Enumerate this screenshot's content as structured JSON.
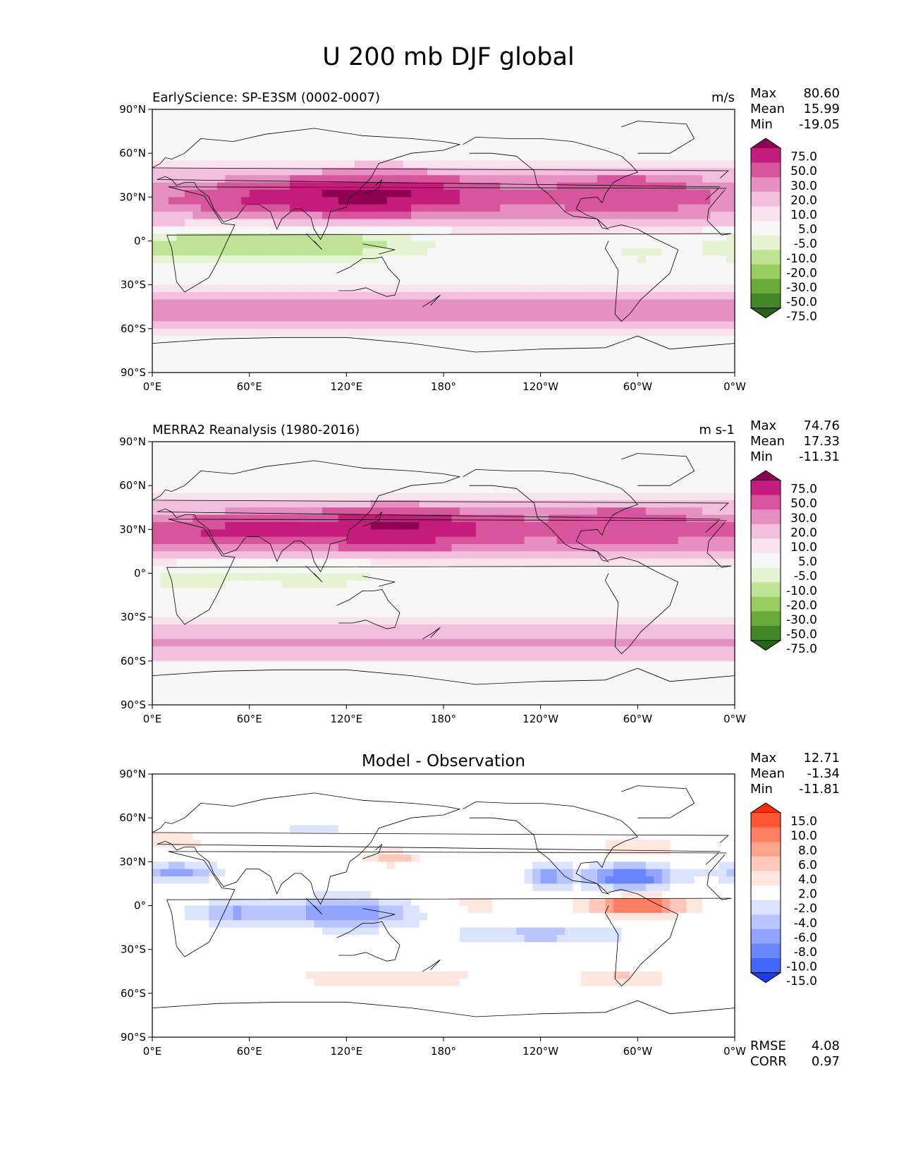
{
  "figure": {
    "title": "U 200 mb DJF global"
  },
  "axes": {
    "lat_ticks": [
      "90°N",
      "60°N",
      "30°N",
      "0°",
      "30°S",
      "60°S",
      "90°S"
    ],
    "lon_ticks": [
      "0°E",
      "60°E",
      "120°E",
      "180°",
      "120°W",
      "60°W",
      "0°W"
    ]
  },
  "panels": [
    {
      "title_left": "EarlyScience: SP-E3SM (0002-0007)",
      "title_center": "",
      "units": "m/s",
      "stats": [
        {
          "label": "Max",
          "value": "80.60"
        },
        {
          "label": "Mean",
          "value": "15.99"
        },
        {
          "label": "Min",
          "value": "-19.05"
        }
      ],
      "colorbar": {
        "levels": [
          "75.0",
          "50.0",
          "30.0",
          "20.0",
          "10.0",
          "5.0",
          "-5.0",
          "-10.0",
          "-20.0",
          "-30.0",
          "-50.0",
          "-75.0"
        ],
        "colors": [
          "#8e0152",
          "#c51b7d",
          "#d6559c",
          "#e590c0",
          "#f2c0dc",
          "#fae3ef",
          "#f7f7f7",
          "#e6f4d3",
          "#bfe496",
          "#98cd60",
          "#6aaa38",
          "#43862a",
          "#276419"
        ]
      }
    },
    {
      "title_left": "MERRA2 Reanalysis (1980-2016)",
      "title_center": "",
      "units": "m s-1",
      "stats": [
        {
          "label": "Max",
          "value": "74.76"
        },
        {
          "label": "Mean",
          "value": "17.33"
        },
        {
          "label": "Min",
          "value": "-11.31"
        }
      ],
      "colorbar": {
        "levels": [
          "75.0",
          "50.0",
          "30.0",
          "20.0",
          "10.0",
          "5.0",
          "-5.0",
          "-10.0",
          "-20.0",
          "-30.0",
          "-50.0",
          "-75.0"
        ],
        "colors": [
          "#8e0152",
          "#c51b7d",
          "#d6559c",
          "#e590c0",
          "#f2c0dc",
          "#fae3ef",
          "#f7f7f7",
          "#e6f4d3",
          "#bfe496",
          "#98cd60",
          "#6aaa38",
          "#43862a",
          "#276419"
        ]
      }
    },
    {
      "title_left": "",
      "title_center": "Model - Observation",
      "units": "",
      "stats": [
        {
          "label": "Max",
          "value": "12.71"
        },
        {
          "label": "Mean",
          "value": "-1.34"
        },
        {
          "label": "Min",
          "value": "-11.81"
        }
      ],
      "extra_stats": [
        {
          "label": "RMSE",
          "value": "4.08"
        },
        {
          "label": "CORR",
          "value": "0.97"
        }
      ],
      "colorbar": {
        "levels": [
          "15.0",
          "10.0",
          "8.0",
          "6.0",
          "4.0",
          "2.0",
          "-2.0",
          "-4.0",
          "-6.0",
          "-8.0",
          "-10.0",
          "-15.0"
        ],
        "colors": [
          "#ff2a00",
          "#ff5535",
          "#ff7f63",
          "#ffa48d",
          "#ffc8b8",
          "#ffe6de",
          "#ffffff",
          "#dbe3ff",
          "#b8c5ff",
          "#91a5ff",
          "#6b85ff",
          "#4565ff",
          "#1a3cff"
        ]
      }
    }
  ],
  "chart_data": [
    {
      "type": "heatmap",
      "title": "EarlyScience: SP-E3SM (0002-0007)",
      "field": "U 200 mb DJF",
      "units": "m/s",
      "xlim": [
        0,
        360
      ],
      "ylim": [
        -90,
        90
      ],
      "contour_levels": [
        -75,
        -50,
        -30,
        -20,
        -10,
        -5,
        5,
        10,
        20,
        30,
        50,
        75
      ],
      "features": [
        {
          "kind": "zonal_band",
          "lat": 30,
          "value": 30,
          "halfwidth": 20
        },
        {
          "kind": "jet",
          "lon": 140,
          "lat": 33,
          "value": 62,
          "sx": 40,
          "sy": 9
        },
        {
          "kind": "jet",
          "lon": 75,
          "lat": 29,
          "value": 25,
          "sx": 30,
          "sy": 7
        },
        {
          "kind": "jet",
          "lon": 290,
          "lat": 35,
          "value": 25,
          "sx": 28,
          "sy": 10
        },
        {
          "kind": "zonal_band",
          "lat": -48,
          "value": 32,
          "halfwidth": 13
        },
        {
          "kind": "easterly",
          "lon": 100,
          "lat": 0,
          "value": -18,
          "sx": 55,
          "sy": 9
        },
        {
          "kind": "easterly",
          "lon": 20,
          "lat": -3,
          "value": -12,
          "sx": 30,
          "sy": 8
        },
        {
          "kind": "easterly",
          "lon": 300,
          "lat": -8,
          "value": -7,
          "sx": 15,
          "sy": 6
        }
      ]
    },
    {
      "type": "heatmap",
      "title": "MERRA2 Reanalysis (1980-2016)",
      "field": "U 200 mb DJF",
      "units": "m s-1",
      "xlim": [
        0,
        360
      ],
      "ylim": [
        -90,
        90
      ],
      "contour_levels": [
        -75,
        -50,
        -30,
        -20,
        -10,
        -5,
        5,
        10,
        20,
        30,
        50,
        75
      ],
      "features": [
        {
          "kind": "zonal_band",
          "lat": 30,
          "value": 30,
          "halfwidth": 20
        },
        {
          "kind": "jet",
          "lon": 150,
          "lat": 32,
          "value": 58,
          "sx": 40,
          "sy": 9
        },
        {
          "kind": "jet",
          "lon": 50,
          "lat": 28,
          "value": 32,
          "sx": 28,
          "sy": 7
        },
        {
          "kind": "jet",
          "lon": 290,
          "lat": 35,
          "value": 25,
          "sx": 28,
          "sy": 10
        },
        {
          "kind": "zonal_band",
          "lat": -48,
          "value": 28,
          "halfwidth": 13
        },
        {
          "kind": "easterly",
          "lon": 100,
          "lat": 0,
          "value": -10,
          "sx": 45,
          "sy": 8
        },
        {
          "kind": "easterly",
          "lon": 20,
          "lat": -3,
          "value": -8,
          "sx": 20,
          "sy": 7
        }
      ]
    },
    {
      "type": "heatmap",
      "title": "Model - Observation",
      "field": "U 200 mb DJF difference",
      "units": "",
      "xlim": [
        0,
        360
      ],
      "ylim": [
        -90,
        90
      ],
      "contour_levels": [
        -15,
        -10,
        -8,
        -6,
        -4,
        -2,
        2,
        4,
        6,
        8,
        10,
        15
      ],
      "rmse": 4.08,
      "corr": 0.97,
      "features": [
        {
          "kind": "anomaly",
          "lon": 300,
          "lat": 0,
          "value": 11,
          "sx": 22,
          "sy": 5
        },
        {
          "kind": "anomaly",
          "lon": 295,
          "lat": 20,
          "value": -11,
          "sx": 20,
          "sy": 6
        },
        {
          "kind": "anomaly",
          "lon": 120,
          "lat": -5,
          "value": -8,
          "sx": 30,
          "sy": 8
        },
        {
          "kind": "anomaly",
          "lon": 50,
          "lat": -5,
          "value": -6,
          "sx": 20,
          "sy": 6
        },
        {
          "kind": "anomaly",
          "lon": 15,
          "lat": 23,
          "value": -7,
          "sx": 20,
          "sy": 5
        },
        {
          "kind": "anomaly",
          "lon": 148,
          "lat": 33,
          "value": 6,
          "sx": 14,
          "sy": 4
        },
        {
          "kind": "anomaly",
          "lon": 15,
          "lat": 45,
          "value": 5,
          "sx": 14,
          "sy": 6
        },
        {
          "kind": "anomaly",
          "lon": 145,
          "lat": -50,
          "value": 5,
          "sx": 45,
          "sy": 6
        },
        {
          "kind": "anomaly",
          "lon": 290,
          "lat": -50,
          "value": 6,
          "sx": 20,
          "sy": 5
        },
        {
          "kind": "anomaly",
          "lon": 245,
          "lat": 20,
          "value": -7,
          "sx": 10,
          "sy": 6
        },
        {
          "kind": "anomaly",
          "lon": 300,
          "lat": 40,
          "value": 5,
          "sx": 20,
          "sy": 5
        },
        {
          "kind": "anomaly",
          "lon": 200,
          "lat": 0,
          "value": 3,
          "sx": 20,
          "sy": 4
        },
        {
          "kind": "anomaly",
          "lon": 100,
          "lat": 55,
          "value": -3,
          "sx": 50,
          "sy": 10
        },
        {
          "kind": "anomaly",
          "lon": 240,
          "lat": -20,
          "value": -5,
          "sx": 40,
          "sy": 5
        }
      ]
    }
  ]
}
